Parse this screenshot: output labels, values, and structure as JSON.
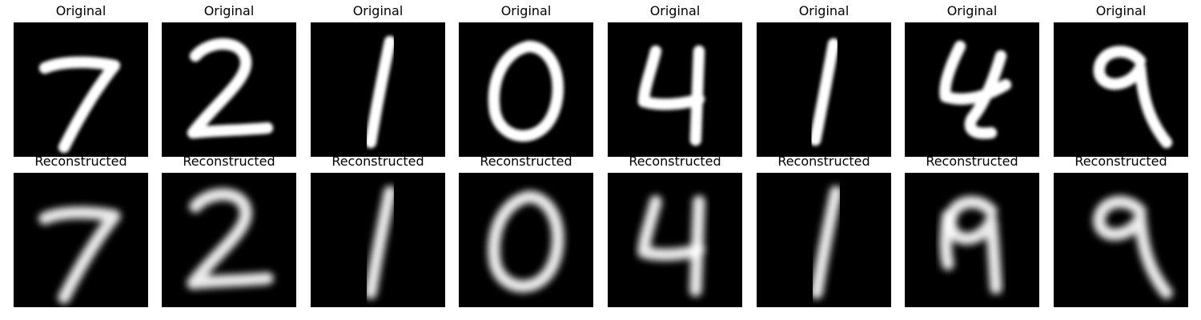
{
  "rows": [
    {
      "id": "original",
      "title": "Original",
      "style": "pixel",
      "digits": [
        "7",
        "2",
        "1",
        "0",
        "4",
        "1",
        "4",
        "9"
      ]
    },
    {
      "id": "reconstructed",
      "title": "Reconstructed",
      "style": "blur",
      "digits": [
        "7",
        "2",
        "1",
        "0",
        "4",
        "1",
        "9",
        "9"
      ]
    }
  ],
  "colors": {
    "background": "#000000",
    "stroke": "#ffffff",
    "page": "#ffffff"
  }
}
